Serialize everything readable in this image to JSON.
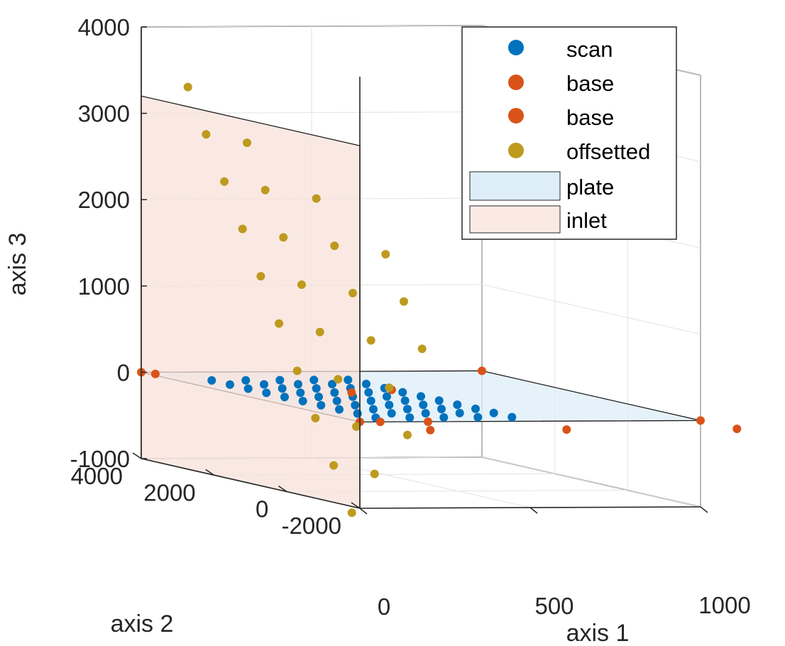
{
  "chart_data": {
    "type": "scatter",
    "projection": "3d",
    "title": "",
    "xlabel": "axis 1",
    "ylabel": "axis 2",
    "zlabel": "axis 3",
    "xlim": [
      0,
      1000
    ],
    "ylim": [
      -2000,
      4000
    ],
    "zlim": [
      -1000,
      4000
    ],
    "xticks": [
      "0",
      "500",
      "1000"
    ],
    "yticks": [
      "-2000",
      "0",
      "2000",
      "4000"
    ],
    "zticks": [
      "-1000",
      "0",
      "1000",
      "2000",
      "3000",
      "4000"
    ],
    "grid": true,
    "legend_position": "top-right",
    "legend": [
      {
        "label": "scan",
        "kind": "marker",
        "color": "#0072BD"
      },
      {
        "label": "base",
        "kind": "marker",
        "color": "#D95319"
      },
      {
        "label": "base",
        "kind": "marker",
        "color": "#D95319"
      },
      {
        "label": "offsetted",
        "kind": "marker",
        "color": "#BE9A1E"
      },
      {
        "label": "plate",
        "kind": "patch",
        "color": "#DDEEF8"
      },
      {
        "label": "inlet",
        "kind": "patch",
        "color": "#FBEAE4"
      }
    ],
    "planes": [
      {
        "name": "plate",
        "color": "#DDEEF8",
        "corners": [
          [
            0,
            -2000,
            0
          ],
          [
            1000,
            -2000,
            0
          ],
          [
            1000,
            4000,
            0
          ],
          [
            0,
            4000,
            0
          ]
        ]
      },
      {
        "name": "inlet",
        "color": "#F8E1DA",
        "corners": [
          [
            0,
            -2000,
            -1000
          ],
          [
            0,
            4000,
            -1000
          ],
          [
            0,
            4000,
            3200
          ],
          [
            0,
            -2000,
            3200
          ]
        ]
      }
    ],
    "series": [
      {
        "name": "scan",
        "color": "#0072BD",
        "points": [
          [
            100,
            -1500,
            0
          ],
          [
            100,
            -1000,
            0
          ],
          [
            100,
            -500,
            0
          ],
          [
            100,
            0,
            0
          ],
          [
            100,
            500,
            0
          ],
          [
            100,
            1000,
            0
          ],
          [
            100,
            1500,
            0
          ],
          [
            100,
            2000,
            0
          ],
          [
            100,
            2500,
            0
          ],
          [
            100,
            3000,
            0
          ],
          [
            200,
            -1500,
            0
          ],
          [
            200,
            -1000,
            0
          ],
          [
            200,
            -500,
            0
          ],
          [
            200,
            0,
            0
          ],
          [
            200,
            500,
            0
          ],
          [
            200,
            1000,
            0
          ],
          [
            200,
            1500,
            0
          ],
          [
            200,
            2000,
            0
          ],
          [
            200,
            2500,
            0
          ],
          [
            200,
            3000,
            0
          ],
          [
            300,
            -1500,
            0
          ],
          [
            300,
            -1000,
            0
          ],
          [
            300,
            -500,
            0
          ],
          [
            300,
            0,
            0
          ],
          [
            300,
            500,
            0
          ],
          [
            300,
            1000,
            0
          ],
          [
            300,
            1500,
            0
          ],
          [
            300,
            2000,
            0
          ],
          [
            300,
            2500,
            0
          ],
          [
            300,
            3000,
            0
          ],
          [
            400,
            -1500,
            0
          ],
          [
            400,
            -1000,
            0
          ],
          [
            400,
            -500,
            0
          ],
          [
            400,
            0,
            0
          ],
          [
            400,
            500,
            0
          ],
          [
            400,
            1000,
            0
          ],
          [
            400,
            1500,
            0
          ],
          [
            400,
            2000,
            0
          ],
          [
            400,
            2500,
            0
          ],
          [
            400,
            3000,
            0
          ],
          [
            500,
            -1500,
            0
          ],
          [
            500,
            -1000,
            0
          ],
          [
            500,
            -500,
            0
          ],
          [
            500,
            0,
            0
          ],
          [
            500,
            500,
            0
          ],
          [
            500,
            1000,
            0
          ],
          [
            500,
            1500,
            0
          ],
          [
            500,
            2000,
            0
          ],
          [
            500,
            2500,
            0
          ],
          [
            500,
            3000,
            0
          ]
        ]
      },
      {
        "name": "base",
        "color": "#D95319",
        "points": [
          [
            1000,
            4000,
            0
          ],
          [
            1000,
            -2000,
            0
          ],
          [
            0,
            4000,
            0
          ],
          [
            0,
            -2000,
            0
          ]
        ]
      },
      {
        "name": "base",
        "color": "#D95319",
        "points": [
          [
            100,
            -3000,
            0
          ],
          [
            500,
            -3000,
            0
          ],
          [
            1000,
            -3000,
            0
          ],
          [
            350,
            1500,
            0
          ],
          [
            500,
            1800,
            0
          ],
          [
            200,
            -2000,
            0
          ],
          [
            20,
            3800,
            0
          ],
          [
            60,
            -2000,
            0
          ]
        ]
      },
      {
        "name": "offsetted",
        "color": "#BE9A1E",
        "points": [
          [
            30,
            3000,
            3400
          ],
          [
            30,
            2500,
            2900
          ],
          [
            30,
            2000,
            2400
          ],
          [
            30,
            1500,
            1900
          ],
          [
            30,
            1000,
            1400
          ],
          [
            30,
            500,
            900
          ],
          [
            30,
            0,
            400
          ],
          [
            30,
            -500,
            -100
          ],
          [
            30,
            -1000,
            -600
          ],
          [
            30,
            -1500,
            -1100
          ],
          [
            150,
            2500,
            2800
          ],
          [
            150,
            2000,
            2300
          ],
          [
            150,
            1500,
            1800
          ],
          [
            150,
            1000,
            1300
          ],
          [
            150,
            500,
            800
          ],
          [
            150,
            0,
            300
          ],
          [
            150,
            -500,
            -200
          ],
          [
            150,
            -1000,
            -700
          ],
          [
            300,
            2000,
            2200
          ],
          [
            300,
            1500,
            1700
          ],
          [
            300,
            1000,
            1200
          ],
          [
            300,
            500,
            700
          ],
          [
            300,
            0,
            200
          ],
          [
            300,
            -500,
            -300
          ],
          [
            450,
            1500,
            1600
          ],
          [
            450,
            1000,
            1100
          ],
          [
            450,
            500,
            600
          ]
        ]
      }
    ]
  }
}
